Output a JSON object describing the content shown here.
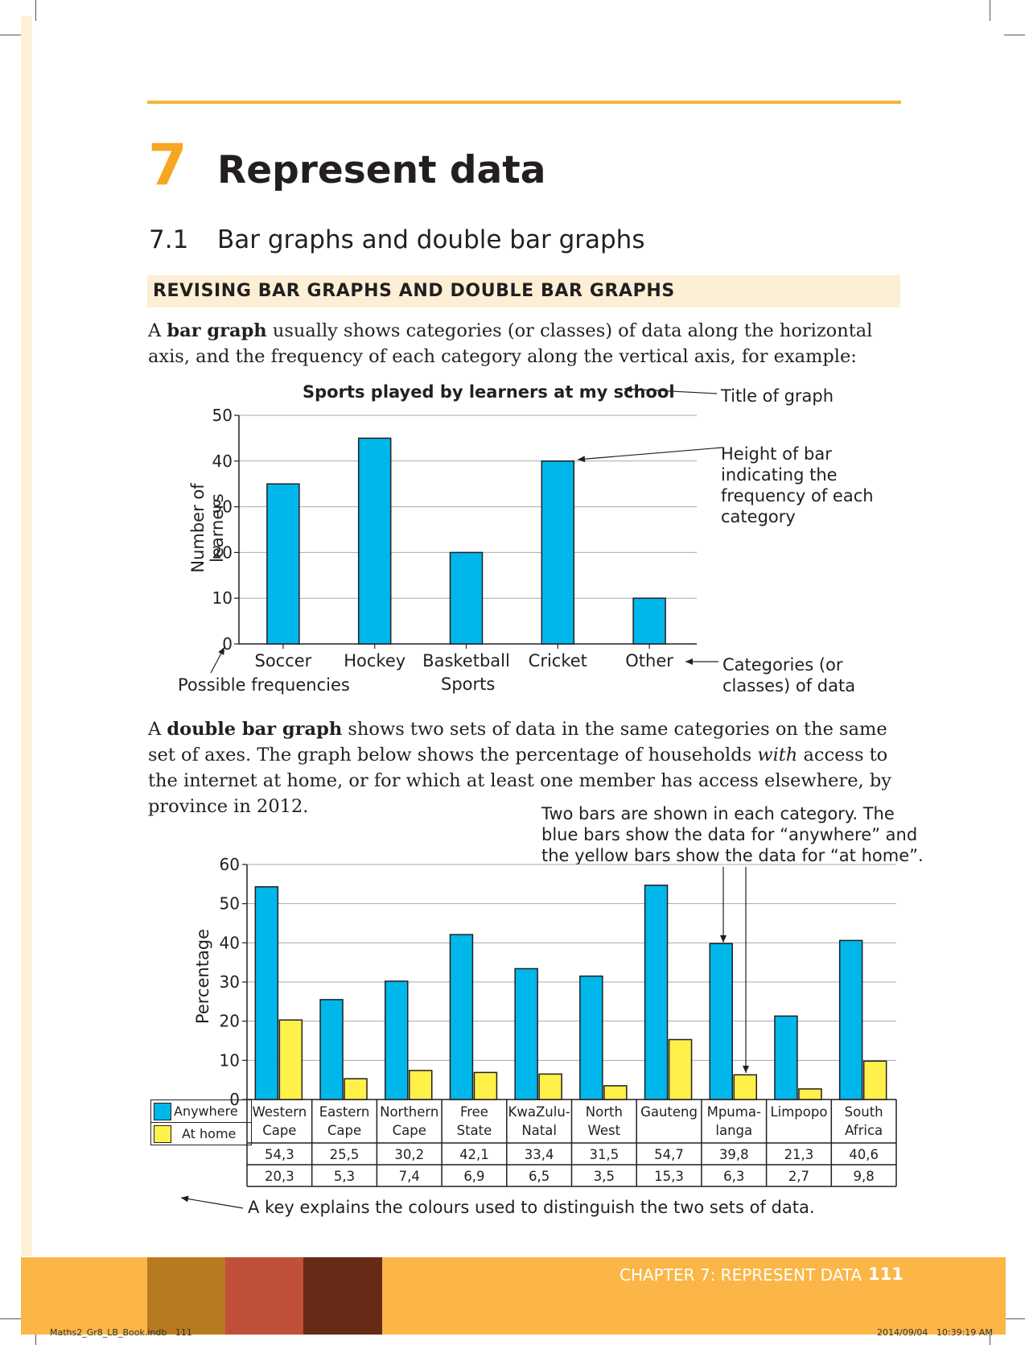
{
  "header": {
    "chapter_number": "7",
    "chapter_title": "Represent data",
    "section_number": "7.1",
    "section_title": "Bar graphs and double bar graphs",
    "banner": "REVISING BAR GRAPHS AND DOUBLE BAR GRAPHS"
  },
  "intro": {
    "p1": [
      "A ",
      "bar graph",
      " usually shows categories (or classes) of data along the horizontal axis, and the frequency of each category along the vertical axis, for example:"
    ],
    "p2": [
      "A ",
      "double bar graph",
      " shows two sets of data in the same categories on the same set of axes. The graph below shows the percentage of households ",
      "with",
      " access to the internet at home, or for which at least one member has access elsewhere, by province in 2012."
    ]
  },
  "annotations": {
    "title_of_graph": "Title of graph",
    "height_of_bar": [
      "Height of bar",
      "indicating the",
      "frequency of each",
      "category"
    ],
    "categories": [
      "Categories (or",
      "classes) of data"
    ],
    "possible_frequencies": "Possible frequencies",
    "two_bars": [
      "Two bars are shown in each category. The",
      "blue bars show the data for “anywhere” and",
      "the yellow bars show the data for “at home”."
    ],
    "key_note": "A key explains the colours used to distinguish the two sets of data."
  },
  "colors": {
    "blue": "#00b7eb",
    "yellow": "#fff04a",
    "accent": "#f5a623"
  },
  "chart_data": [
    {
      "type": "bar",
      "title": "Sports played by learners at my school",
      "xlabel": "Sports",
      "ylabel": "Number of learners",
      "categories": [
        "Soccer",
        "Hockey",
        "Basketball",
        "Cricket",
        "Other"
      ],
      "values": [
        35,
        45,
        20,
        40,
        10
      ],
      "ylim": [
        0,
        50
      ],
      "yticks": [
        0,
        10,
        20,
        30,
        40,
        50
      ],
      "grid": true
    },
    {
      "type": "bar",
      "ylabel": "Percentage",
      "categories": [
        [
          "Western",
          "Cape"
        ],
        [
          "Eastern",
          "Cape"
        ],
        [
          "Northern",
          "Cape"
        ],
        [
          "Free",
          "State"
        ],
        [
          "KwaZulu-",
          "Natal"
        ],
        [
          "North",
          "West"
        ],
        [
          "Gauteng",
          ""
        ],
        [
          "Mpuma-",
          "langa"
        ],
        [
          "Limpopo",
          ""
        ],
        [
          "South",
          "Africa"
        ]
      ],
      "series": [
        {
          "name": "Anywhere",
          "values": [
            54.3,
            25.5,
            30.2,
            42.1,
            33.4,
            31.5,
            54.7,
            39.8,
            21.3,
            40.6
          ],
          "labels": [
            "54,3",
            "25,5",
            "30,2",
            "42,1",
            "33,4",
            "31,5",
            "54,7",
            "39,8",
            "21,3",
            "40,6"
          ]
        },
        {
          "name": "At home",
          "values": [
            20.3,
            5.3,
            7.4,
            6.9,
            6.5,
            3.5,
            15.3,
            6.3,
            2.7,
            9.8
          ],
          "labels": [
            "20,3",
            "5,3",
            "7,4",
            "6,9",
            "6,5",
            "3,5",
            "15,3",
            "6,3",
            "2,7",
            "9,8"
          ]
        }
      ],
      "ylim": [
        0,
        60
      ],
      "yticks": [
        0,
        10,
        20,
        30,
        40,
        50,
        60
      ],
      "grid": true,
      "legend": "table below chart"
    }
  ],
  "footer": {
    "chapter_label": "CHAPTER 7: REPRESENT DATA",
    "page_number": "111",
    "slug_left": "Maths2_Gr8_LB_Book.indb   111",
    "slug_right": "2014/09/04   10:39:19 AM"
  }
}
